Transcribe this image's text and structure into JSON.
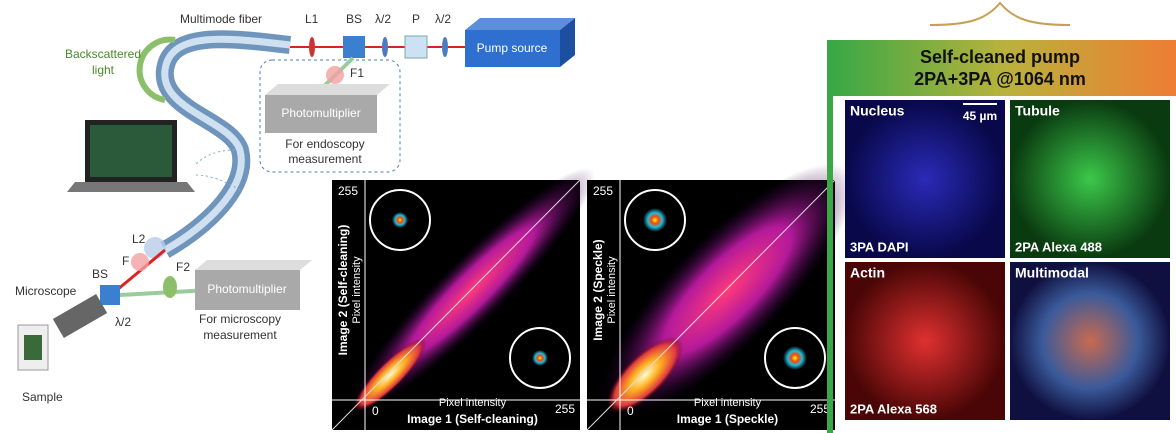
{
  "setup": {
    "fiber": "Multimode fiber",
    "l1": "L1",
    "bs_top": "BS",
    "half_wave_top_1": "λ/2",
    "polarizer": "P",
    "half_wave_top_2": "λ/2",
    "pump": "Pump source",
    "backscattered": [
      "Backscattered",
      "light"
    ],
    "f1": "F1",
    "pmt_top": "Photomultiplier",
    "endoscopy": [
      "For endoscopy",
      "measurement"
    ],
    "l2": "L2",
    "f": "F",
    "f2": "F2",
    "bs_bottom": "BS",
    "microscope": "Microscope",
    "half_wave_bottom": "λ/2",
    "pmt_bottom": "Photomultiplier",
    "microscopy": [
      "For microscopy",
      "measurement"
    ],
    "sample": "Sample"
  },
  "plots": [
    {
      "y_max": "255",
      "y_title": "Image 2 (Self-cleaning)",
      "y_label": "Pixel intensity",
      "origin": "0",
      "x_label": "Pixel intensity",
      "x_title": "Image 1 (Self-cleaning)",
      "x_max": "255"
    },
    {
      "y_max": "255",
      "y_title": "Image 2 (Speckle)",
      "y_label": "Pixel intensity",
      "origin": "0",
      "x_label": "Pixel intensity",
      "x_title": "Image 1 (Speckle)",
      "x_max": "255"
    }
  ],
  "panel": {
    "title": [
      "Self-cleaned pump",
      "2PA+3PA @1064 nm"
    ],
    "scale_bar": "45 µm",
    "tiles": [
      {
        "name": "Nucleus",
        "label": "3PA DAPI"
      },
      {
        "name": "Tubule",
        "label": "2PA Alexa 488"
      },
      {
        "name": "Actin",
        "label": "2PA Alexa 568"
      },
      {
        "name": "Multimodal"
      }
    ]
  }
}
